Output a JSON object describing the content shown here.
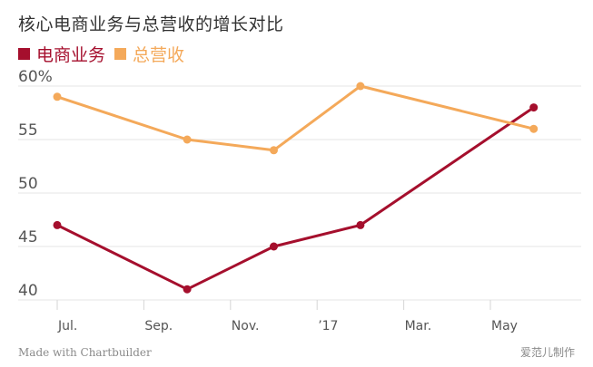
{
  "title": "核心电商业务与总营收的增长对比",
  "footer": {
    "left": "Made with Chartbuilder",
    "right": "爱范儿制作"
  },
  "chart_data": {
    "type": "line",
    "title": "核心电商业务与总营收的增长对比",
    "xlabel": "",
    "ylabel": "",
    "x_ticks": [
      "Jul.",
      "Sep.",
      "Nov.",
      "’17",
      "Mar.",
      "May"
    ],
    "y_ticks": [
      "60%",
      "55",
      "50",
      "45",
      "40"
    ],
    "ylim": [
      40,
      60
    ],
    "grid": true,
    "legend_position": "top-left",
    "series": [
      {
        "name": "电商业务",
        "color": "#a50f2d",
        "points": [
          {
            "x": "Jul.",
            "y": 47
          },
          {
            "x": "Oct.",
            "y": 41
          },
          {
            "x": "Dec.",
            "y": 45
          },
          {
            "x": "Feb.",
            "y": 47
          },
          {
            "x": "Jun.",
            "y": 58
          }
        ]
      },
      {
        "name": "总营收",
        "color": "#f4a95a",
        "points": [
          {
            "x": "Jul.",
            "y": 59
          },
          {
            "x": "Oct.",
            "y": 55
          },
          {
            "x": "Dec.",
            "y": 54
          },
          {
            "x": "Feb.",
            "y": 60
          },
          {
            "x": "Jun.",
            "y": 56
          }
        ]
      }
    ]
  }
}
